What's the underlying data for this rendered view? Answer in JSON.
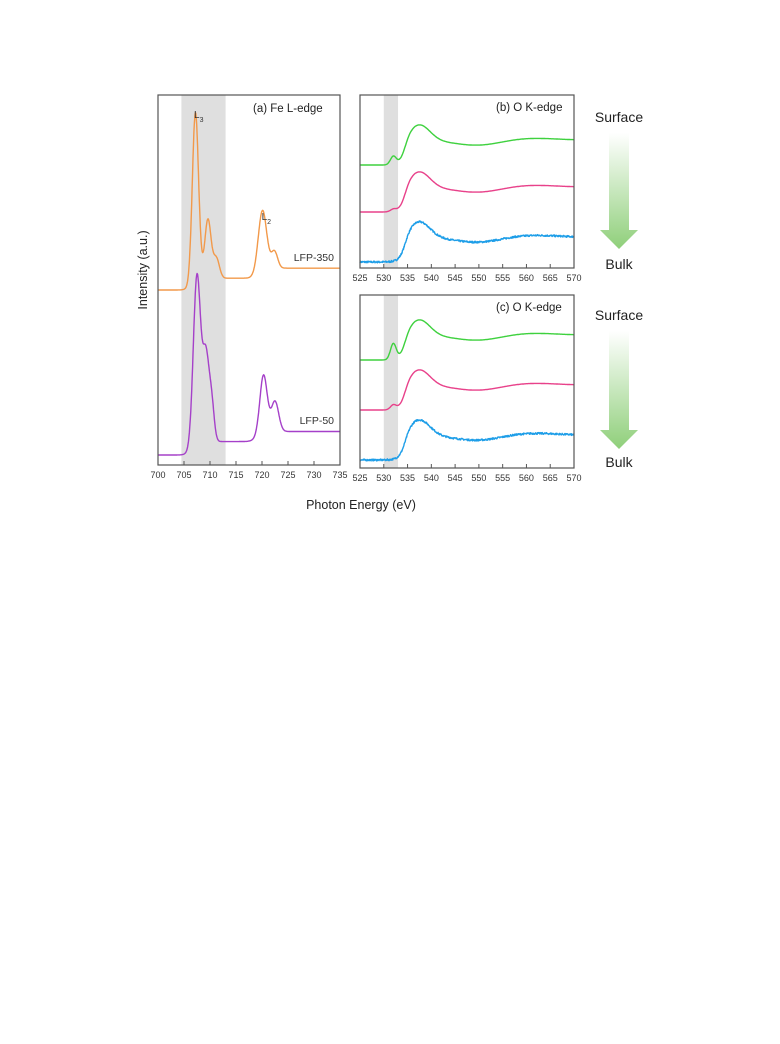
{
  "xlabel": "Photon Energy (eV)",
  "ylabel": "Intensity (a.u.)",
  "colors": {
    "LFP-350": "#f2994a",
    "LFP-50": "#a540c9",
    "surface": "#3ed13e",
    "middle": "#e8418a",
    "bulk": "#1e9ee8",
    "shade": "#d9d9d9",
    "arrow": "#8fcf7a"
  },
  "chart_data": [
    {
      "type": "line",
      "panel": "a",
      "title": "(a) Fe L-edge",
      "xlim": [
        700,
        735
      ],
      "xticks": [
        700,
        705,
        710,
        715,
        720,
        725,
        730,
        735
      ],
      "shaded_region": [
        704.5,
        713
      ],
      "peak_labels": [
        {
          "main": "L",
          "sub": "3",
          "x": 707.5
        },
        {
          "main": "L",
          "sub": "2",
          "x": 720.5
        }
      ],
      "series": [
        {
          "name": "LFP-350",
          "color_key": "LFP-350",
          "peaks": [
            {
              "center": 707.2,
              "height": 1.0,
              "width": 0.6
            },
            {
              "center": 709.6,
              "height": 0.35,
              "width": 0.6
            },
            {
              "center": 711.2,
              "height": 0.12,
              "width": 0.6
            },
            {
              "center": 720.1,
              "height": 0.35,
              "width": 0.8
            },
            {
              "center": 722.4,
              "height": 0.1,
              "width": 0.6
            }
          ],
          "step": {
            "at": 706.5,
            "height": 0.07
          },
          "scale": 168,
          "baseline_y": 290,
          "label_at_x": 731
        },
        {
          "name": "LFP-50",
          "color_key": "LFP-50",
          "peaks": [
            {
              "center": 707.5,
              "height": 1.0,
              "width": 0.7
            },
            {
              "center": 709.2,
              "height": 0.5,
              "width": 0.6
            },
            {
              "center": 710.3,
              "height": 0.22,
              "width": 0.5
            },
            {
              "center": 720.3,
              "height": 0.34,
              "width": 0.7
            },
            {
              "center": 722.5,
              "height": 0.18,
              "width": 0.7
            }
          ],
          "step": {
            "at": 706.5,
            "height": 0.08
          },
          "scale": 168,
          "baseline_y": 455,
          "label_at_x": 731
        }
      ]
    },
    {
      "type": "line",
      "panel": "b",
      "title": "(b) O K-edge",
      "xlim": [
        525,
        570
      ],
      "xticks": [
        525,
        530,
        535,
        540,
        545,
        550,
        555,
        560,
        565,
        570
      ],
      "shaded_region": [
        530,
        533
      ],
      "series": [
        {
          "name": "Surface",
          "color_key": "surface",
          "pre_edge": {
            "center": 532,
            "height": 0.18
          },
          "baseline_y": 165,
          "noise": 0
        },
        {
          "name": "",
          "color_key": "middle",
          "pre_edge": {
            "center": 532,
            "height": 0.05
          },
          "baseline_y": 212,
          "noise": 0
        },
        {
          "name": "Bulk",
          "color_key": "bulk",
          "pre_edge": {
            "center": 532,
            "height": 0.0
          },
          "baseline_y": 262,
          "noise": 0.05
        }
      ]
    },
    {
      "type": "line",
      "panel": "c",
      "title": "(c) O K-edge",
      "xlim": [
        525,
        570
      ],
      "xticks": [
        525,
        530,
        535,
        540,
        545,
        550,
        555,
        560,
        565,
        570
      ],
      "shaded_region": [
        530,
        533
      ],
      "series": [
        {
          "name": "Surface",
          "color_key": "surface",
          "pre_edge": {
            "center": 532,
            "height": 0.35
          },
          "baseline_y": 360,
          "noise": 0
        },
        {
          "name": "",
          "color_key": "middle",
          "pre_edge": {
            "center": 532,
            "height": 0.1
          },
          "baseline_y": 410,
          "noise": 0
        },
        {
          "name": "Bulk",
          "color_key": "bulk",
          "pre_edge": {
            "center": 532,
            "height": 0.0
          },
          "baseline_y": 460,
          "noise": 0.05
        }
      ]
    }
  ],
  "depth_arrows": [
    {
      "top_label": "Surface",
      "bottom_label": "Bulk"
    },
    {
      "top_label": "Surface",
      "bottom_label": "Bulk"
    }
  ]
}
